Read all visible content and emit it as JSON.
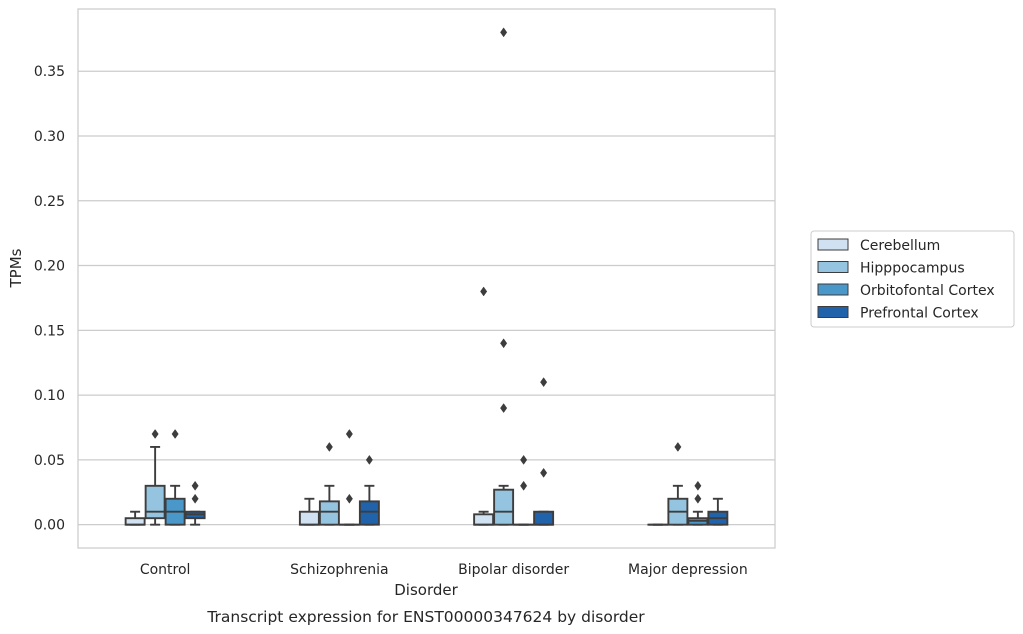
{
  "chart_data": {
    "type": "box",
    "title": "",
    "caption": "Transcript expression for ENST00000347624 by disorder",
    "xlabel": "Disorder",
    "ylabel": "TPMs",
    "ylim": [
      -0.018,
      0.398
    ],
    "yticks": [
      0.0,
      0.05,
      0.1,
      0.15,
      0.2,
      0.25,
      0.3,
      0.35
    ],
    "ytick_labels": [
      "0.00",
      "0.05",
      "0.10",
      "0.15",
      "0.20",
      "0.25",
      "0.30",
      "0.35"
    ],
    "grid": true,
    "legend_position": "right",
    "categories": [
      "Control",
      "Schizophrenia",
      "Bipolar disorder",
      "Major depression"
    ],
    "series": [
      {
        "name": "Cerebellum",
        "color": "#d0e1f2",
        "boxes": [
          {
            "whislo": 0.0,
            "q1": 0.0,
            "med": 0.0,
            "q3": 0.005,
            "whishi": 0.01,
            "fliers": []
          },
          {
            "whislo": 0.0,
            "q1": 0.0,
            "med": 0.0,
            "q3": 0.01,
            "whishi": 0.02,
            "fliers": []
          },
          {
            "whislo": 0.0,
            "q1": 0.0,
            "med": 0.0,
            "q3": 0.008,
            "whishi": 0.01,
            "fliers": [
              0.18
            ]
          },
          {
            "whislo": 0.0,
            "q1": 0.0,
            "med": 0.0,
            "q3": 0.0,
            "whishi": 0.0,
            "fliers": []
          }
        ]
      },
      {
        "name": "Hipppocampus",
        "color": "#94c4df",
        "boxes": [
          {
            "whislo": 0.0,
            "q1": 0.005,
            "med": 0.01,
            "q3": 0.03,
            "whishi": 0.06,
            "fliers": [
              0.07
            ]
          },
          {
            "whislo": 0.0,
            "q1": 0.0,
            "med": 0.01,
            "q3": 0.018,
            "whishi": 0.03,
            "fliers": [
              0.06
            ]
          },
          {
            "whislo": 0.0,
            "q1": 0.0,
            "med": 0.01,
            "q3": 0.027,
            "whishi": 0.03,
            "fliers": [
              0.09,
              0.14,
              0.38
            ]
          },
          {
            "whislo": 0.0,
            "q1": 0.0,
            "med": 0.01,
            "q3": 0.02,
            "whishi": 0.03,
            "fliers": [
              0.06
            ]
          }
        ]
      },
      {
        "name": "Orbitofontal Cortex",
        "color": "#4a98c9",
        "boxes": [
          {
            "whislo": 0.0,
            "q1": 0.0,
            "med": 0.01,
            "q3": 0.02,
            "whishi": 0.03,
            "fliers": [
              0.07
            ]
          },
          {
            "whislo": 0.0,
            "q1": 0.0,
            "med": 0.0,
            "q3": 0.0,
            "whishi": 0.0,
            "fliers": [
              0.02,
              0.07
            ]
          },
          {
            "whislo": 0.0,
            "q1": 0.0,
            "med": 0.0,
            "q3": 0.0,
            "whishi": 0.0,
            "fliers": [
              0.03,
              0.05
            ]
          },
          {
            "whislo": 0.0,
            "q1": 0.0,
            "med": 0.003,
            "q3": 0.005,
            "whishi": 0.01,
            "fliers": [
              0.02,
              0.03
            ]
          }
        ]
      },
      {
        "name": "Prefrontal Cortex",
        "color": "#2163aa",
        "boxes": [
          {
            "whislo": 0.0,
            "q1": 0.005,
            "med": 0.008,
            "q3": 0.01,
            "whishi": 0.01,
            "fliers": [
              0.02,
              0.03
            ]
          },
          {
            "whislo": 0.0,
            "q1": 0.0,
            "med": 0.01,
            "q3": 0.018,
            "whishi": 0.03,
            "fliers": [
              0.05
            ]
          },
          {
            "whislo": 0.0,
            "q1": 0.0,
            "med": 0.0,
            "q3": 0.01,
            "whishi": 0.01,
            "fliers": [
              0.04,
              0.11
            ]
          },
          {
            "whislo": 0.0,
            "q1": 0.0,
            "med": 0.005,
            "q3": 0.01,
            "whishi": 0.02,
            "fliers": []
          }
        ]
      }
    ]
  }
}
